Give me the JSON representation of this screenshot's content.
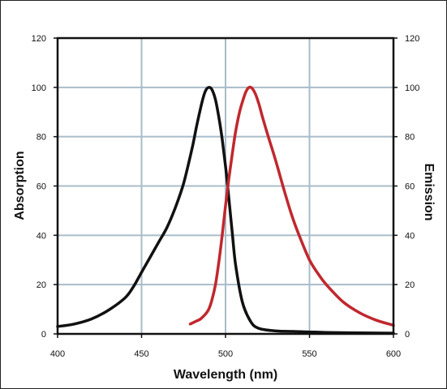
{
  "chart_data": {
    "type": "line",
    "title": "",
    "xlabel": "Wavelength (nm)",
    "ylabel_left": "Absorption",
    "ylabel_right": "Emission",
    "xlim": [
      400,
      600
    ],
    "ylim": [
      0,
      120
    ],
    "x_ticks": [
      "400",
      "450",
      "500",
      "550",
      "600"
    ],
    "y_ticks": [
      "0",
      "20",
      "40",
      "60",
      "80",
      "100",
      "120"
    ],
    "grid": true,
    "grid_color": "#a9bcc8",
    "series": [
      {
        "color": "#111111",
        "x": [
          400,
          410,
          420,
          430,
          440,
          445,
          450,
          455,
          460,
          465,
          470,
          475,
          480,
          483,
          486,
          488,
          490,
          492,
          494,
          496,
          498,
          500,
          502,
          504,
          506,
          510,
          515,
          520,
          530,
          540,
          550,
          560,
          580,
          600
        ],
        "y": [
          3,
          4,
          6,
          9.5,
          14.5,
          19,
          25,
          31,
          37,
          43,
          51,
          61,
          75,
          85,
          94,
          98.5,
          100,
          99,
          95,
          88,
          79,
          68,
          55,
          41,
          28,
          13,
          5,
          2.2,
          1.2,
          1,
          0.8,
          0.6,
          0.4,
          0.3
        ]
      },
      {
        "color": "#c0282e",
        "x": [
          479,
          482,
          485,
          488,
          490,
          492,
          494,
          496,
          498,
          500,
          502,
          504,
          506,
          508,
          510,
          512,
          514,
          516,
          518,
          520,
          522,
          525,
          530,
          535,
          540,
          545,
          550,
          555,
          560,
          570,
          580,
          590,
          600
        ],
        "y": [
          4,
          5,
          6,
          8,
          10,
          14,
          20,
          29,
          40,
          52,
          63,
          73,
          82,
          89,
          94,
          98,
          100,
          99.5,
          97,
          93,
          88,
          81,
          70,
          58,
          47,
          38,
          30,
          24.5,
          20,
          13,
          8.5,
          5.5,
          3.5
        ]
      }
    ]
  }
}
